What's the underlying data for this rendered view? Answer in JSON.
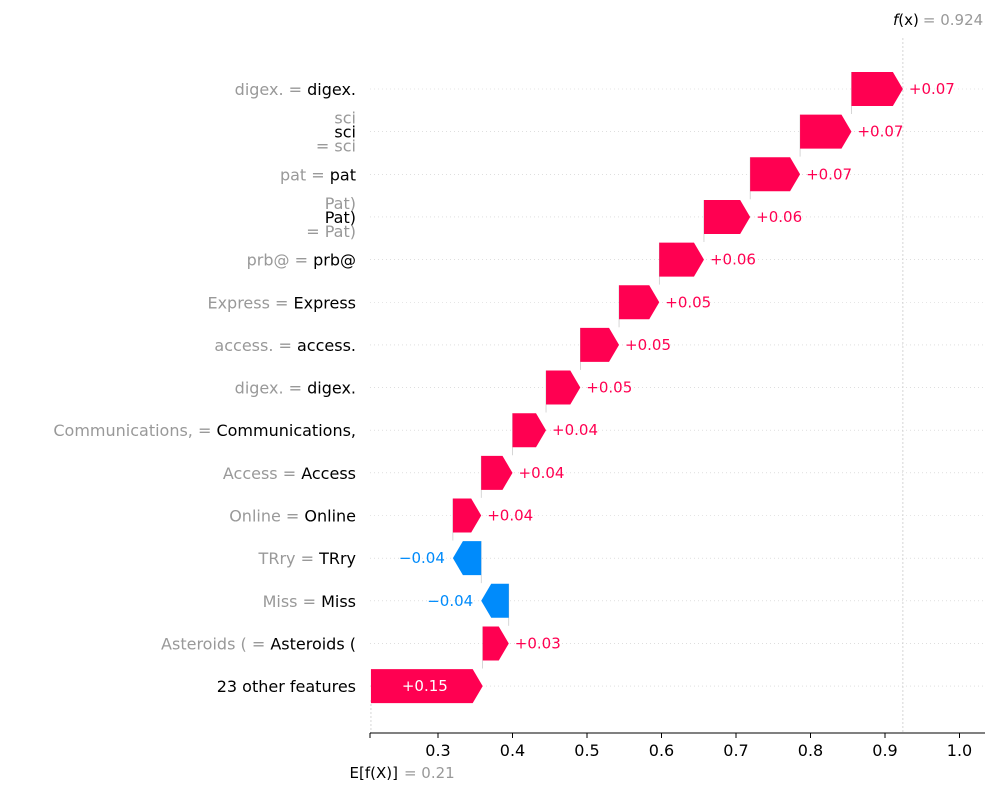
{
  "chart_data": {
    "type": "waterfall",
    "fx_label": "f(x)",
    "fx_value": "0.924",
    "base_label": "E[f(X)]",
    "base_value": "0.21",
    "xlim": [
      0.3,
      1.0
    ],
    "xticks": [
      "0.3",
      "0.4",
      "0.5",
      "0.6",
      "0.7",
      "0.8",
      "0.9",
      "1.0"
    ],
    "features": [
      {
        "name": "digex.",
        "value": "digex.",
        "shap": 0.07,
        "label": "+0.07",
        "start": 0.855,
        "end": 0.924
      },
      {
        "name": "sci",
        "value": "sci",
        "shap": 0.07,
        "label": "+0.07",
        "start": 0.786,
        "end": 0.855,
        "stacked_name": true
      },
      {
        "name": "pat",
        "value": "pat",
        "shap": 0.07,
        "label": "+0.07",
        "start": 0.719,
        "end": 0.786
      },
      {
        "name": "Pat)",
        "value": "Pat)",
        "shap": 0.06,
        "label": "+0.06",
        "start": 0.657,
        "end": 0.719,
        "stacked_name": true
      },
      {
        "name": "prb@",
        "value": "prb@",
        "shap": 0.06,
        "label": "+0.06",
        "start": 0.597,
        "end": 0.657
      },
      {
        "name": "Express ",
        "value": "Express",
        "shap": 0.05,
        "label": "+0.05",
        "start": 0.543,
        "end": 0.597
      },
      {
        "name": "access.",
        "value": "access.",
        "shap": 0.05,
        "label": "+0.05",
        "start": 0.491,
        "end": 0.543
      },
      {
        "name": "digex.",
        "value": "digex.",
        "shap": 0.05,
        "label": "+0.05",
        "start": 0.445,
        "end": 0.491
      },
      {
        "name": "Communications, ",
        "value": "Communications,",
        "shap": 0.04,
        "label": "+0.04",
        "start": 0.4,
        "end": 0.445
      },
      {
        "name": "Access ",
        "value": "Access",
        "shap": 0.04,
        "label": "+0.04",
        "start": 0.358,
        "end": 0.4
      },
      {
        "name": "Online ",
        "value": "Online",
        "shap": 0.04,
        "label": "+0.04",
        "start": 0.32,
        "end": 0.358
      },
      {
        "name": "TRry ",
        "value": "TRry",
        "shap": -0.04,
        "label": "−0.04",
        "start": 0.358,
        "end": 0.32
      },
      {
        "name": "Miss ",
        "value": "Miss",
        "shap": -0.04,
        "label": "−0.04",
        "start": 0.395,
        "end": 0.358
      },
      {
        "name": "Asteroids (",
        "value": "Asteroids (",
        "shap": 0.03,
        "label": "+0.03",
        "start": 0.36,
        "end": 0.395
      },
      {
        "name": "23 other features",
        "value": "",
        "shap": 0.15,
        "label": "+0.15",
        "start": 0.21,
        "end": 0.36,
        "plain": true
      }
    ],
    "colors": {
      "positive": "#ff0051",
      "negative": "#008bfb",
      "muted": "#999999",
      "text": "#000000"
    }
  }
}
